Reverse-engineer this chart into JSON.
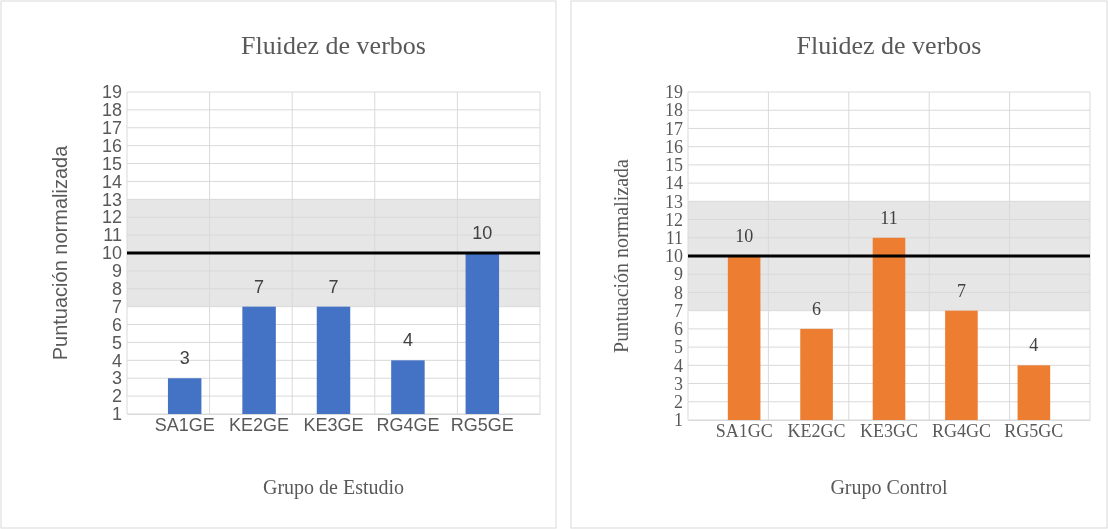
{
  "chart_data": [
    {
      "type": "bar",
      "title": "Fluidez de verbos",
      "xlabel": "Grupo de Estudio",
      "ylabel": "Puntuación normalizada",
      "categories": [
        "SA1GE",
        "KE2GE",
        "KE3GE",
        "RG4GE",
        "RG5GE"
      ],
      "values": [
        3,
        7,
        7,
        4,
        10
      ],
      "color": "#4472c4",
      "ylim": [
        1,
        19
      ],
      "yticks": [
        1,
        2,
        3,
        4,
        5,
        6,
        7,
        8,
        9,
        10,
        11,
        12,
        13,
        14,
        15,
        16,
        17,
        18,
        19
      ],
      "grid": true,
      "data_labels": true,
      "bands": [
        {
          "axis": "y",
          "from": 7,
          "to": 13,
          "color": "#e7e6e6"
        }
      ],
      "ref_lines": [
        {
          "axis": "y",
          "value": 10,
          "color": "#000000"
        }
      ]
    },
    {
      "type": "bar",
      "title": "Fluidez de verbos",
      "xlabel": "Grupo Control",
      "ylabel": "Puntuación normalizada",
      "categories": [
        "SA1GC",
        "KE2GC",
        "KE3GC",
        "RG4GC",
        "RG5GC"
      ],
      "values": [
        10,
        6,
        11,
        7,
        4
      ],
      "color": "#ed7d31",
      "ylim": [
        1,
        19
      ],
      "yticks": [
        1,
        2,
        3,
        4,
        5,
        6,
        7,
        8,
        9,
        10,
        11,
        12,
        13,
        14,
        15,
        16,
        17,
        18,
        19
      ],
      "grid": true,
      "data_labels": true,
      "bands": [
        {
          "axis": "y",
          "from": 7,
          "to": 13,
          "color": "#e7e6e6"
        }
      ],
      "ref_lines": [
        {
          "axis": "y",
          "value": 10,
          "color": "#000000"
        }
      ]
    }
  ]
}
